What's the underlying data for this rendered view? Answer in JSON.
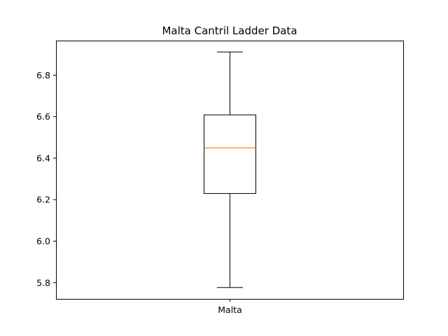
{
  "chart_data": {
    "type": "box",
    "title": "Malta Cantril Ladder Data",
    "xlabel": "",
    "ylabel": "",
    "categories": [
      "Malta"
    ],
    "boxes": [
      {
        "category": "Malta",
        "whisker_low": 5.775,
        "q1": 6.228,
        "median": 6.448,
        "q3": 6.607,
        "whisker_high": 6.91
      }
    ],
    "ylim": [
      5.72,
      6.965
    ],
    "yticks": [
      "5.8",
      "6.0",
      "6.2",
      "6.4",
      "6.6",
      "6.8"
    ],
    "grid": false,
    "colors": {
      "median": "#ff7f0e",
      "box": "#000000"
    }
  }
}
